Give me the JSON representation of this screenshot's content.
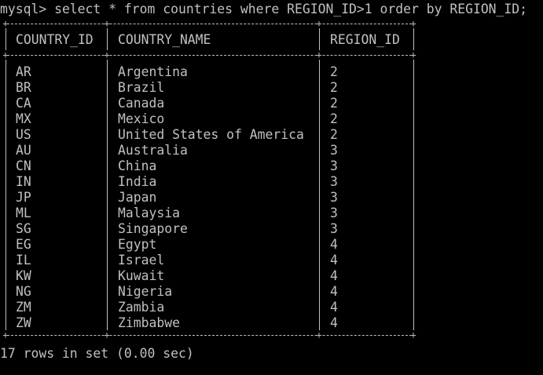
{
  "terminal": {
    "command": "mysql> select * from countries where REGION_ID>1 order by REGION_ID;",
    "footer": "17 rows in set (0.00 sec)"
  },
  "table": {
    "headers": [
      "COUNTRY_ID",
      "COUNTRY_NAME",
      "REGION_ID"
    ],
    "rows": [
      [
        "AR",
        "Argentina",
        "2"
      ],
      [
        "BR",
        "Brazil",
        "2"
      ],
      [
        "CA",
        "Canada",
        "2"
      ],
      [
        "MX",
        "Mexico",
        "2"
      ],
      [
        "US",
        "United States of America",
        "2"
      ],
      [
        "AU",
        "Australia",
        "3"
      ],
      [
        "CN",
        "China",
        "3"
      ],
      [
        "IN",
        "India",
        "3"
      ],
      [
        "JP",
        "Japan",
        "3"
      ],
      [
        "ML",
        "Malaysia",
        "3"
      ],
      [
        "SG",
        "Singapore",
        "3"
      ],
      [
        "EG",
        "Egypt",
        "4"
      ],
      [
        "IL",
        "Israel",
        "4"
      ],
      [
        "KW",
        "Kuwait",
        "4"
      ],
      [
        "NG",
        "Nigeria",
        "4"
      ],
      [
        "ZM",
        "Zambia",
        "4"
      ],
      [
        "ZW",
        "Zimbabwe",
        "4"
      ]
    ]
  },
  "colors": {
    "background": "#000000",
    "text": "#c0c0c0"
  }
}
